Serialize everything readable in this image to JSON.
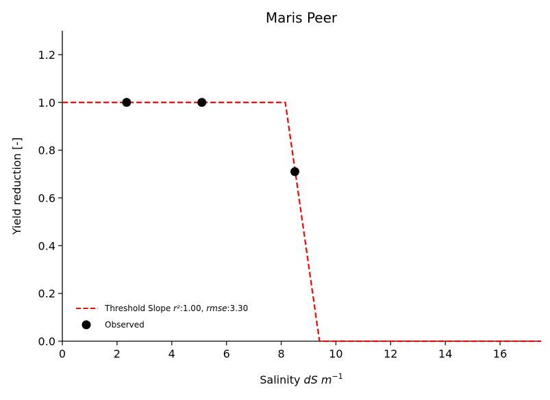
{
  "chart_data": {
    "type": "line",
    "title": "Maris Peer",
    "xlabel_prefix": "Salinity ",
    "xlabel_italic": "dS m",
    "xlabel_sup": "−1",
    "ylabel": "Yield reduction [-]",
    "xlim": [
      0,
      17.5
    ],
    "ylim": [
      0,
      1.3
    ],
    "xticks": [
      0,
      2,
      4,
      6,
      8,
      10,
      12,
      14,
      16
    ],
    "yticks": [
      0.0,
      0.2,
      0.4,
      0.6,
      0.8,
      1.0,
      1.2
    ],
    "ytick_labels": [
      "0.0",
      "0.2",
      "0.4",
      "0.6",
      "0.8",
      "1.0",
      "1.2"
    ],
    "grid": false,
    "legend_position": "lower-left",
    "series": [
      {
        "name": "Threshold Slope",
        "style": "dashed",
        "color": "#ff0000",
        "x": [
          0,
          8.15,
          9.4,
          17.5
        ],
        "y": [
          1.0,
          1.0,
          0.0,
          0.0
        ]
      },
      {
        "name": "Observed",
        "style": "scatter",
        "color": "#000000",
        "x": [
          2.35,
          5.1,
          8.5
        ],
        "y": [
          1.0,
          1.0,
          0.71
        ]
      }
    ],
    "legend": {
      "line_label": "Threshold Slope ",
      "line_r2_text": "r²",
      "line_r2_value": ":1.00, ",
      "line_rmse_text": "rmse",
      "line_rmse_value": ":3.30",
      "scatter_label": "Observed"
    }
  }
}
